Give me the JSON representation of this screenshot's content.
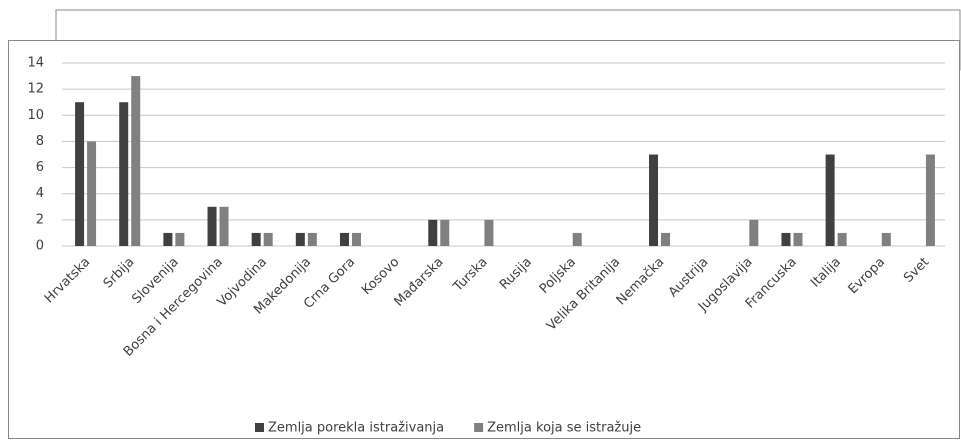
{
  "chart_data": {
    "type": "bar",
    "categories": [
      "Hrvatska",
      "Srbija",
      "Slovenija",
      "Bosna i Hercegovina",
      "Vojvodina",
      "Makedonija",
      "Crna Gora",
      "Kosovo",
      "Mađarska",
      "Turska",
      "Rusija",
      "Poljska",
      "Velika Britanija",
      "Nemačka",
      "Austrija",
      "Jugoslavija",
      "Francuska",
      "Italija",
      "Evropa",
      "Svet"
    ],
    "series": [
      {
        "name": "Zemlja porekla istraživanja",
        "color": "#404040",
        "values": [
          11,
          11,
          1,
          3,
          1,
          1,
          1,
          0,
          2,
          0,
          0,
          0,
          0,
          7,
          0,
          0,
          1,
          7,
          0,
          0
        ]
      },
      {
        "name": "Zemlja koja se istražuje",
        "color": "#808080",
        "values": [
          8,
          13,
          1,
          3,
          1,
          1,
          1,
          0,
          2,
          2,
          0,
          1,
          0,
          1,
          0,
          2,
          1,
          1,
          1,
          7
        ]
      }
    ],
    "ylim": [
      0,
      14
    ],
    "yticks": [
      0,
      2,
      4,
      6,
      8,
      10,
      12,
      14
    ],
    "grid": true,
    "legend": "bottom"
  }
}
